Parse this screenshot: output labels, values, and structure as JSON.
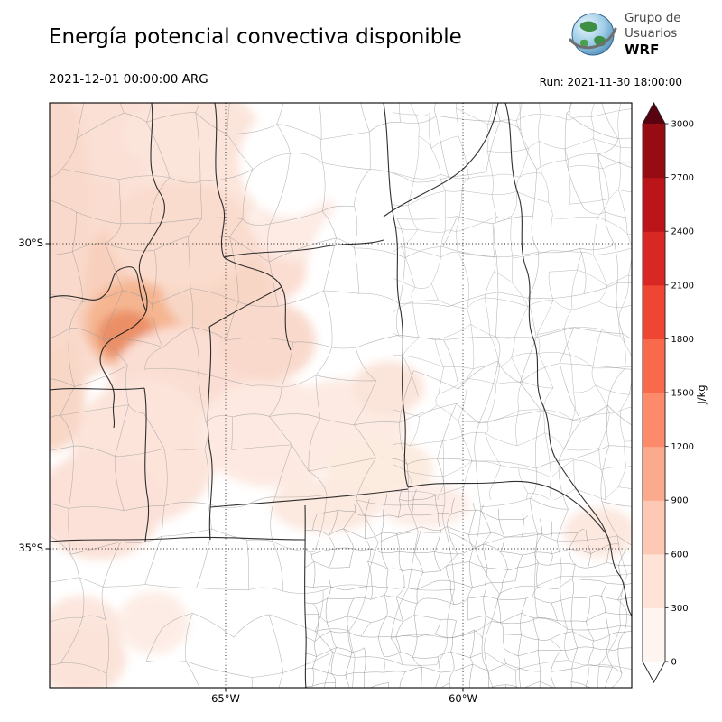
{
  "title": "Energía potencial convectiva disponible",
  "logo": {
    "line1": "Grupo de",
    "line2": "Usuarios",
    "line3": "WRF"
  },
  "header": {
    "valid_time": "2021-12-01 00:00:00 ARG",
    "run_label": "Run: 2021-11-30 18:00:00"
  },
  "axes": {
    "lat_labels": [
      "30°S",
      "35°S"
    ],
    "lon_labels": [
      "65°W",
      "60°W"
    ]
  },
  "colorbar": {
    "unit": "J/kg",
    "min": 0,
    "max": 3000,
    "tick_values": [
      0,
      300,
      600,
      900,
      1200,
      1500,
      1800,
      2100,
      2400,
      2700,
      3000
    ],
    "band_colors_bottom_to_top": [
      "#fff5f0",
      "#fee3d6",
      "#fdc9b4",
      "#fcaa8e",
      "#fc8a6b",
      "#f9694c",
      "#ef4533",
      "#d92723",
      "#bb151a",
      "#970b13"
    ],
    "under_arrow_color": "#ffffff",
    "over_arrow_color": "#5a0310",
    "outline_color": "#222222"
  }
}
